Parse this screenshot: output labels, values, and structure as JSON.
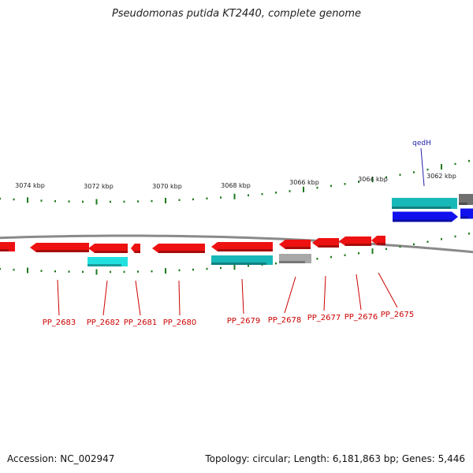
{
  "title": "Pseudomonas putida KT2440, complete genome",
  "footer": {
    "accession": "Accession: NC_002947",
    "info": "Topology: circular; Length: 6,181,863 bp; Genes: 5,446"
  },
  "colors": {
    "background": "#ffffff",
    "backbone": "#8a8a8a",
    "tick": "#1e7a1e",
    "gene_red": "#ee1111",
    "gene_cyan": "#18b8b8",
    "gene_blue": "#1111ee",
    "gene_gray": "#a8a8a8",
    "label_red": "#cc0000",
    "label_blue": "#2222aa"
  },
  "scale_labels": [
    "3074 kbp",
    "3072 kbp",
    "3070 kbp",
    "3068 kbp",
    "3066 kbp",
    "3064 kbp",
    "3062 kbp"
  ],
  "gene_labels": [
    "PP_2683",
    "PP_2682",
    "PP_2681",
    "PP_2680",
    "PP_2679",
    "PP_2678",
    "PP_2677",
    "PP_2676",
    "PP_2675"
  ],
  "top_label": "qedH"
}
